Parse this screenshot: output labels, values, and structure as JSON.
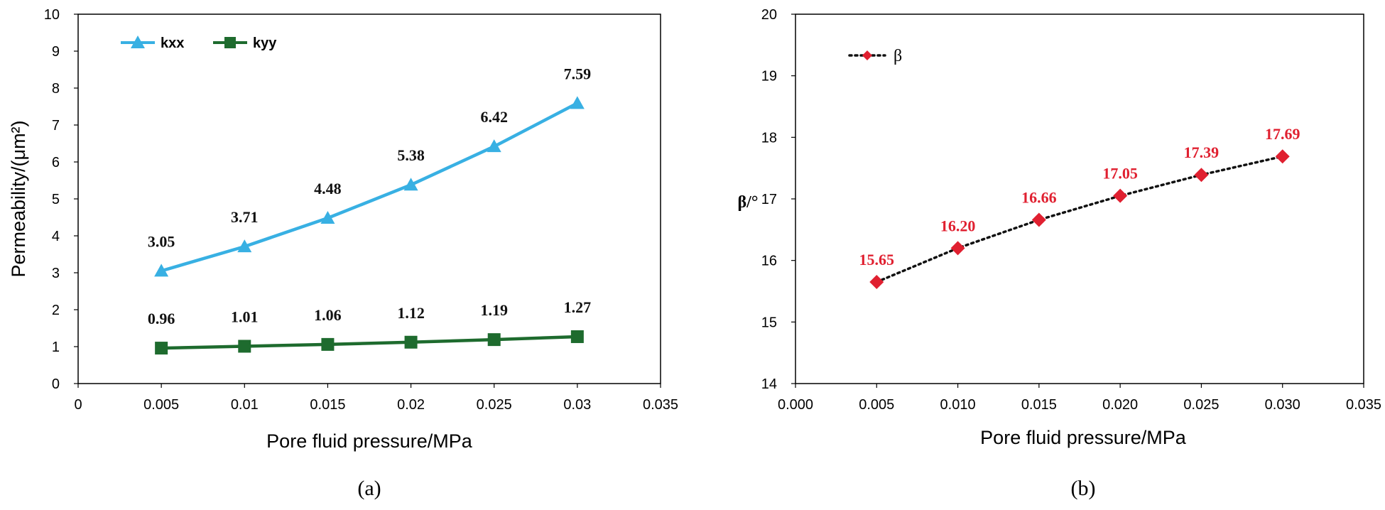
{
  "chart_data": [
    {
      "type": "line",
      "caption": "(a)",
      "xlabel": "Pore fluid pressure/MPa",
      "ylabel": "Permeability/(μm²)",
      "xlim": [
        0,
        0.035
      ],
      "ylim": [
        0,
        10
      ],
      "x_tick_labels": [
        "0",
        "0.005",
        "0.01",
        "0.015",
        "0.02",
        "0.025",
        "0.03",
        "0.035"
      ],
      "y_tick_labels": [
        "0",
        "1",
        "2",
        "3",
        "4",
        "5",
        "6",
        "7",
        "8",
        "9",
        "10"
      ],
      "x": [
        0.005,
        0.01,
        0.015,
        0.02,
        0.025,
        0.03
      ],
      "legend_position": "top-left",
      "series": [
        {
          "name": "kxx",
          "color": "#38b0e3",
          "marker": "triangle",
          "values": [
            3.05,
            3.71,
            4.48,
            5.38,
            6.42,
            7.59
          ],
          "labels": [
            "3.05",
            "3.71",
            "4.48",
            "5.38",
            "6.42",
            "7.59"
          ]
        },
        {
          "name": "kyy",
          "color": "#1e6b2e",
          "marker": "square",
          "values": [
            0.96,
            1.01,
            1.06,
            1.12,
            1.19,
            1.27
          ],
          "labels": [
            "0.96",
            "1.01",
            "1.06",
            "1.12",
            "1.19",
            "1.27"
          ]
        }
      ]
    },
    {
      "type": "line",
      "caption": "(b)",
      "xlabel": "Pore fluid pressure/MPa",
      "ylabel": "β/°",
      "xlim": [
        0,
        0.035
      ],
      "ylim": [
        14,
        20
      ],
      "x_tick_labels": [
        "0.000",
        "0.005",
        "0.010",
        "0.015",
        "0.020",
        "0.025",
        "0.030",
        "0.035"
      ],
      "y_tick_labels": [
        "14",
        "15",
        "16",
        "17",
        "18",
        "19",
        "20"
      ],
      "x": [
        0.005,
        0.01,
        0.015,
        0.02,
        0.025,
        0.03
      ],
      "legend_position": "top-left",
      "series": [
        {
          "name": "β",
          "color": "#e02030",
          "line_color": "#111111",
          "line_style": "dotted",
          "marker": "diamond",
          "values": [
            15.65,
            16.2,
            16.66,
            17.05,
            17.39,
            17.69
          ],
          "labels": [
            "15.65",
            "16.20",
            "16.66",
            "17.05",
            "17.39",
            "17.69"
          ]
        }
      ]
    }
  ]
}
